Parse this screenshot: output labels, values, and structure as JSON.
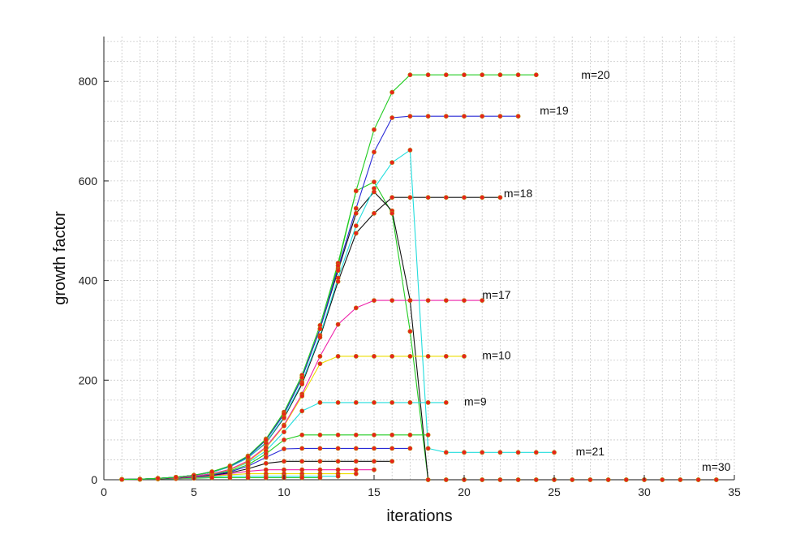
{
  "chart_data": {
    "type": "line",
    "xlabel": "iterations",
    "ylabel": "growth factor",
    "xlim": [
      0,
      35
    ],
    "ylim": [
      0,
      890
    ],
    "x_ticks": [
      0,
      5,
      10,
      15,
      20,
      25,
      30,
      35
    ],
    "y_ticks": [
      0,
      200,
      400,
      600,
      800
    ],
    "grid": true,
    "marker_color": "#e8221b",
    "marker_edge_color": "#b8860b",
    "series": [
      {
        "name": "m=20",
        "color": "#22cc22",
        "x": [
          1,
          2,
          3,
          4,
          5,
          6,
          7,
          8,
          9,
          10,
          11,
          12,
          13,
          14,
          15,
          16,
          17,
          18,
          19,
          20,
          21,
          22,
          23,
          24
        ],
        "y": [
          0.6,
          1.2,
          2.8,
          5,
          9,
          16,
          28,
          48,
          82,
          136,
          210,
          310,
          435,
          580,
          703,
          778,
          813,
          813,
          813,
          813,
          813,
          813,
          813,
          813
        ]
      },
      {
        "name": "m=19",
        "color": "#2a2ad6",
        "x": [
          1,
          2,
          3,
          4,
          5,
          6,
          7,
          8,
          9,
          10,
          11,
          12,
          13,
          14,
          15,
          16,
          17,
          18,
          19,
          20,
          21,
          22,
          23
        ],
        "y": [
          0.6,
          1.2,
          2.8,
          5,
          9,
          16,
          27,
          46,
          80,
          132,
          205,
          303,
          425,
          545,
          658,
          727,
          730,
          730,
          730,
          730,
          730,
          730,
          730
        ]
      },
      {
        "name": "",
        "color": "#22dddd",
        "x": [
          1,
          2,
          3,
          4,
          5,
          6,
          7,
          8,
          9,
          10,
          11,
          12,
          13,
          14,
          15,
          16,
          17,
          18,
          19,
          20,
          21,
          22,
          23,
          24,
          25
        ],
        "y": [
          0.6,
          1.2,
          2.8,
          5,
          9,
          15,
          26,
          44,
          75,
          126,
          196,
          290,
          405,
          510,
          585,
          637,
          662,
          63,
          55,
          55,
          55,
          55,
          55,
          55,
          55
        ]
      },
      {
        "name": "m=18",
        "color": "#111111",
        "x": [
          1,
          2,
          3,
          4,
          5,
          6,
          7,
          8,
          9,
          10,
          11,
          12,
          13,
          14,
          15,
          16,
          17,
          18,
          19,
          20,
          21,
          22
        ],
        "y": [
          0.6,
          1.2,
          2.8,
          5,
          9,
          15,
          26,
          44,
          74,
          124,
          192,
          286,
          398,
          495,
          535,
          567,
          567,
          567,
          567,
          567,
          567,
          567
        ]
      },
      {
        "name": "m=17",
        "color": "#ee22aa",
        "x": [
          1,
          2,
          3,
          4,
          5,
          6,
          7,
          8,
          9,
          10,
          11,
          12,
          13,
          14,
          15,
          16,
          17,
          18,
          19,
          20,
          21
        ],
        "y": [
          0.6,
          1.2,
          2.5,
          4,
          7,
          12,
          21,
          38,
          66,
          110,
          172,
          248,
          312,
          345,
          360,
          360,
          360,
          360,
          360,
          360,
          360
        ]
      },
      {
        "name": "m=10",
        "color": "#eedd00",
        "x": [
          1,
          2,
          3,
          4,
          5,
          6,
          7,
          8,
          9,
          10,
          11,
          12,
          13,
          14,
          15,
          16,
          17,
          18,
          19,
          20
        ],
        "y": [
          0.6,
          1.2,
          2.5,
          4,
          7,
          12,
          20,
          36,
          64,
          108,
          168,
          233,
          248,
          248,
          248,
          248,
          248,
          248,
          248,
          248
        ]
      },
      {
        "name": "m=9",
        "color": "#22dddd",
        "x": [
          1,
          2,
          3,
          4,
          5,
          6,
          7,
          8,
          9,
          10,
          11,
          12,
          13,
          14,
          15,
          16,
          17,
          18,
          19
        ],
        "y": [
          0.6,
          1.2,
          2.5,
          4,
          7,
          12,
          20,
          34,
          58,
          96,
          138,
          155,
          155,
          155,
          155,
          155,
          155,
          155,
          155
        ]
      },
      {
        "name": "",
        "color": "#22cc22",
        "x": [
          1,
          2,
          3,
          4,
          5,
          6,
          7,
          8,
          9,
          10,
          11,
          12,
          13,
          14,
          15,
          16,
          17,
          18
        ],
        "y": [
          0.6,
          1.2,
          2.3,
          4,
          7,
          11,
          18,
          30,
          52,
          80,
          90,
          90,
          90,
          90,
          90,
          90,
          90,
          90
        ]
      },
      {
        "name": "",
        "color": "#2a2ad6",
        "x": [
          1,
          2,
          3,
          4,
          5,
          6,
          7,
          8,
          9,
          10,
          11,
          12,
          13,
          14,
          15,
          16,
          17
        ],
        "y": [
          0.6,
          1.1,
          2.2,
          4,
          6,
          10,
          16,
          27,
          45,
          62,
          63,
          63,
          63,
          63,
          63,
          63,
          63
        ]
      },
      {
        "name": "",
        "color": "#111111",
        "x": [
          1,
          2,
          3,
          4,
          5,
          6,
          7,
          8,
          9,
          10,
          11,
          12,
          13,
          14,
          15,
          16
        ],
        "y": [
          0.6,
          1.1,
          2,
          3.5,
          5.5,
          9,
          14,
          22,
          33,
          37,
          37,
          37,
          37,
          37,
          37,
          37
        ]
      },
      {
        "name": "",
        "color": "#ee22aa",
        "x": [
          1,
          2,
          3,
          4,
          5,
          6,
          7,
          8,
          9,
          10,
          11,
          12,
          13,
          14,
          15
        ],
        "y": [
          0.6,
          1,
          2,
          3,
          5,
          8,
          12,
          17,
          20,
          20,
          20,
          20,
          20,
          20,
          20
        ]
      },
      {
        "name": "",
        "color": "#eedd00",
        "x": [
          1,
          2,
          3,
          4,
          5,
          6,
          7,
          8,
          9,
          10,
          11,
          12,
          13,
          14
        ],
        "y": [
          0.6,
          1,
          2,
          3,
          4.5,
          7,
          10,
          12,
          12,
          12,
          12,
          12,
          12,
          12
        ]
      },
      {
        "name": "",
        "color": "#22dddd",
        "x": [
          1,
          2,
          3,
          4,
          5,
          6,
          7,
          8,
          9,
          10,
          11,
          12,
          13
        ],
        "y": [
          0.6,
          1,
          1.8,
          2.6,
          4,
          5.5,
          7,
          7,
          7,
          7,
          7,
          7,
          7
        ]
      },
      {
        "name": "",
        "color": "#22cc22",
        "x": [
          1,
          2,
          3,
          4,
          5,
          6,
          7,
          8,
          9,
          10,
          11,
          12
        ],
        "y": [
          0.6,
          1,
          1.5,
          2.2,
          3,
          4,
          4,
          4,
          4,
          4,
          4,
          4
        ]
      },
      {
        "name": "",
        "color": "#111111",
        "x": [
          1,
          2,
          3,
          4,
          5,
          6,
          7,
          8,
          9,
          10,
          11,
          12,
          13,
          14,
          15,
          16,
          17,
          18,
          19,
          20,
          21,
          22,
          23,
          24,
          25,
          26,
          27,
          28,
          29,
          30,
          31,
          32,
          33,
          34
        ],
        "y": [
          0.6,
          1.2,
          2.8,
          5,
          9,
          16,
          27,
          46,
          80,
          132,
          205,
          303,
          420,
          535,
          578,
          540,
          360,
          0,
          0,
          0,
          0,
          0,
          0,
          0,
          0,
          0,
          0,
          0,
          0,
          0,
          0,
          0,
          0,
          0
        ]
      },
      {
        "name": "m=30",
        "color": "#22cc22",
        "x": [
          1,
          2,
          3,
          4,
          5,
          6,
          7,
          8,
          9,
          10,
          11,
          12,
          13,
          14,
          15,
          16,
          17,
          18,
          19,
          20,
          21,
          22,
          23,
          24,
          25,
          26,
          27,
          28,
          29,
          30,
          31,
          32,
          33,
          34
        ],
        "y": [
          0.6,
          1.2,
          2.8,
          5,
          9,
          16,
          27,
          46,
          80,
          132,
          205,
          303,
          430,
          580,
          598,
          535,
          298,
          0,
          0,
          0,
          0,
          0,
          0,
          0,
          0,
          0,
          0,
          0,
          0,
          0,
          0,
          0,
          0,
          0
        ]
      }
    ],
    "annotations": [
      {
        "text": "m=20",
        "x": 26.5,
        "y": 813
      },
      {
        "text": "m=19",
        "x": 24.2,
        "y": 742
      },
      {
        "text": "m=18",
        "x": 22.2,
        "y": 575
      },
      {
        "text": "m=17",
        "x": 21.0,
        "y": 372
      },
      {
        "text": "m=10",
        "x": 21.0,
        "y": 250
      },
      {
        "text": "m=9",
        "x": 20.0,
        "y": 157
      },
      {
        "text": "m=21",
        "x": 26.2,
        "y": 57
      },
      {
        "text": "m=30",
        "x": 33.2,
        "y": 26
      }
    ]
  }
}
